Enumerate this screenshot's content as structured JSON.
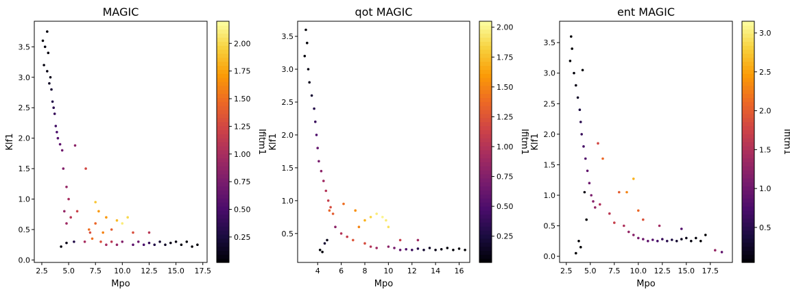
{
  "chart_data": [
    {
      "type": "scatter",
      "title": "MAGIC",
      "xlabel": "Mpo",
      "ylabel": "Klf1",
      "colorbar_label": "Ifitm1",
      "colormap": "inferno",
      "xlim": [
        1.8,
        17.9
      ],
      "ylim": [
        -0.04,
        3.92
      ],
      "clim": [
        0.02,
        2.2
      ],
      "xticks": [
        2.5,
        5.0,
        7.5,
        10.0,
        12.5,
        15.0,
        17.5
      ],
      "xtick_labels": [
        "2.5",
        "5.0",
        "7.5",
        "10.0",
        "12.5",
        "15.0",
        "17.5"
      ],
      "yticks": [
        0.0,
        0.5,
        1.0,
        1.5,
        2.0,
        2.5,
        3.0,
        3.5
      ],
      "ytick_labels": [
        "0.0",
        "0.5",
        "1.0",
        "1.5",
        "2.0",
        "2.5",
        "3.0",
        "3.5"
      ],
      "cticks": [
        0.25,
        0.5,
        0.75,
        1.0,
        1.25,
        1.5,
        1.75,
        2.0
      ],
      "ctick_labels": [
        "0.25",
        "0.50",
        "0.75",
        "1.00",
        "1.25",
        "1.50",
        "1.75",
        "2.00"
      ],
      "series": [
        {
          "columns": [
            "Mpo",
            "Klf1",
            "Ifitm1"
          ],
          "points": [
            [
              2.6,
              3.6,
              0.05
            ],
            [
              2.8,
              3.5,
              0.05
            ],
            [
              3.0,
              3.75,
              0.05
            ],
            [
              3.1,
              3.4,
              0.05
            ],
            [
              2.7,
              3.2,
              0.05
            ],
            [
              3.0,
              3.1,
              0.08
            ],
            [
              3.3,
              3.0,
              0.1
            ],
            [
              3.2,
              2.9,
              0.15
            ],
            [
              3.4,
              2.8,
              0.2
            ],
            [
              3.5,
              2.6,
              0.3
            ],
            [
              3.6,
              2.5,
              0.35
            ],
            [
              3.7,
              2.4,
              0.4
            ],
            [
              3.8,
              2.2,
              0.45
            ],
            [
              3.9,
              2.1,
              0.5
            ],
            [
              4.0,
              2.0,
              0.55
            ],
            [
              4.2,
              1.9,
              0.6
            ],
            [
              4.4,
              1.8,
              0.7
            ],
            [
              5.6,
              1.88,
              0.85
            ],
            [
              4.5,
              1.5,
              0.8
            ],
            [
              4.8,
              1.2,
              0.9
            ],
            [
              5.0,
              1.0,
              1.0
            ],
            [
              4.6,
              0.8,
              0.9
            ],
            [
              4.8,
              0.6,
              0.95
            ],
            [
              5.2,
              0.7,
              1.1
            ],
            [
              5.8,
              0.8,
              1.2
            ],
            [
              6.6,
              1.5,
              1.25
            ],
            [
              4.3,
              0.22,
              0.05
            ],
            [
              4.8,
              0.28,
              0.1
            ],
            [
              5.5,
              0.3,
              0.3
            ],
            [
              6.5,
              0.3,
              1.0
            ],
            [
              7.0,
              0.45,
              1.3
            ],
            [
              7.5,
              0.6,
              1.45
            ],
            [
              7.8,
              0.8,
              1.7
            ],
            [
              7.5,
              0.95,
              1.9
            ],
            [
              8.5,
              0.7,
              1.7
            ],
            [
              9.0,
              0.5,
              1.4
            ],
            [
              9.5,
              0.65,
              1.85
            ],
            [
              10.0,
              0.6,
              2.1
            ],
            [
              10.5,
              0.7,
              2.0
            ],
            [
              7.2,
              0.35,
              1.5
            ],
            [
              8.0,
              0.3,
              1.3
            ],
            [
              8.5,
              0.25,
              1.0
            ],
            [
              9.0,
              0.3,
              1.1
            ],
            [
              9.5,
              0.25,
              0.9
            ],
            [
              10.0,
              0.3,
              0.8
            ],
            [
              11.0,
              0.25,
              0.6
            ],
            [
              11.5,
              0.3,
              0.7
            ],
            [
              12.0,
              0.25,
              0.5
            ],
            [
              12.5,
              0.28,
              0.4
            ],
            [
              13.0,
              0.25,
              0.3
            ],
            [
              13.5,
              0.3,
              0.2
            ],
            [
              14.0,
              0.25,
              0.15
            ],
            [
              14.5,
              0.28,
              0.1
            ],
            [
              15.0,
              0.3,
              0.08
            ],
            [
              15.5,
              0.25,
              0.05
            ],
            [
              16.0,
              0.3,
              0.04
            ],
            [
              16.5,
              0.22,
              0.03
            ],
            [
              17.0,
              0.25,
              0.03
            ],
            [
              12.5,
              0.45,
              1.1
            ],
            [
              11.0,
              0.45,
              1.3
            ],
            [
              8.2,
              0.45,
              1.6
            ],
            [
              6.9,
              0.5,
              1.5
            ]
          ]
        }
      ]
    },
    {
      "type": "scatter",
      "title": "qot MAGIC",
      "xlabel": "Mpo",
      "ylabel": "Klf1",
      "colorbar_label": "Ifitm1",
      "colormap": "inferno",
      "xlim": [
        2.3,
        16.9
      ],
      "ylim": [
        0.06,
        3.73
      ],
      "clim": [
        0.03,
        2.05
      ],
      "xticks": [
        4,
        6,
        8,
        10,
        12,
        14,
        16
      ],
      "xtick_labels": [
        "4",
        "6",
        "8",
        "10",
        "12",
        "14",
        "16"
      ],
      "yticks": [
        0.5,
        1.0,
        1.5,
        2.0,
        2.5,
        3.0,
        3.5
      ],
      "ytick_labels": [
        "0.5",
        "1.0",
        "1.5",
        "2.0",
        "2.5",
        "3.0",
        "3.5"
      ],
      "cticks": [
        0.25,
        0.5,
        0.75,
        1.0,
        1.25,
        1.5,
        1.75,
        2.0
      ],
      "ctick_labels": [
        "0.25",
        "0.50",
        "0.75",
        "1.00",
        "1.25",
        "1.50",
        "1.75",
        "2.00"
      ],
      "series": [
        {
          "columns": [
            "Mpo",
            "Klf1",
            "Ifitm1"
          ],
          "points": [
            [
              3.0,
              3.6,
              0.05
            ],
            [
              3.1,
              3.4,
              0.05
            ],
            [
              2.9,
              3.2,
              0.05
            ],
            [
              3.2,
              3.0,
              0.08
            ],
            [
              3.3,
              2.8,
              0.12
            ],
            [
              3.5,
              2.6,
              0.2
            ],
            [
              3.7,
              2.4,
              0.3
            ],
            [
              3.8,
              2.2,
              0.4
            ],
            [
              3.9,
              2.0,
              0.5
            ],
            [
              4.0,
              1.8,
              0.6
            ],
            [
              4.1,
              1.6,
              0.7
            ],
            [
              4.3,
              1.45,
              0.8
            ],
            [
              4.5,
              1.3,
              0.9
            ],
            [
              4.7,
              1.15,
              1.0
            ],
            [
              4.9,
              1.0,
              1.1
            ],
            [
              5.1,
              0.9,
              1.2
            ],
            [
              5.3,
              0.8,
              1.3
            ],
            [
              5.0,
              0.85,
              1.35
            ],
            [
              4.8,
              0.4,
              0.1
            ],
            [
              4.6,
              0.35,
              0.2
            ],
            [
              5.5,
              0.6,
              0.8
            ],
            [
              6.0,
              0.5,
              1.0
            ],
            [
              6.5,
              0.45,
              1.1
            ],
            [
              7.0,
              0.4,
              1.25
            ],
            [
              7.5,
              0.6,
              1.5
            ],
            [
              8.0,
              0.7,
              1.7
            ],
            [
              8.5,
              0.75,
              1.85
            ],
            [
              9.0,
              0.8,
              1.95
            ],
            [
              9.5,
              0.75,
              2.0
            ],
            [
              10.0,
              0.6,
              1.9
            ],
            [
              9.8,
              0.7,
              1.95
            ],
            [
              8.0,
              0.35,
              1.2
            ],
            [
              8.5,
              0.3,
              1.0
            ],
            [
              9.0,
              0.28,
              0.9
            ],
            [
              10.0,
              0.3,
              0.8
            ],
            [
              10.5,
              0.28,
              0.7
            ],
            [
              11.0,
              0.25,
              0.6
            ],
            [
              11.5,
              0.26,
              0.5
            ],
            [
              12.0,
              0.25,
              0.4
            ],
            [
              12.5,
              0.27,
              0.3
            ],
            [
              13.0,
              0.25,
              0.2
            ],
            [
              13.5,
              0.28,
              0.15
            ],
            [
              14.0,
              0.25,
              0.1
            ],
            [
              14.5,
              0.26,
              0.08
            ],
            [
              15.0,
              0.28,
              0.05
            ],
            [
              15.5,
              0.25,
              0.05
            ],
            [
              16.0,
              0.27,
              0.04
            ],
            [
              16.5,
              0.25,
              0.03
            ],
            [
              4.4,
              0.22,
              0.05
            ],
            [
              4.2,
              0.25,
              0.04
            ],
            [
              12.5,
              0.4,
              0.9
            ],
            [
              11.0,
              0.4,
              1.1
            ],
            [
              7.2,
              0.85,
              1.55
            ],
            [
              6.2,
              0.95,
              1.4
            ]
          ]
        }
      ]
    },
    {
      "type": "scatter",
      "title": "ent MAGIC",
      "xlabel": "Mpo",
      "ylabel": "Klf1",
      "colorbar_label": "Ifitm1",
      "colormap": "inferno",
      "xlim": [
        1.8,
        19.8
      ],
      "ylim": [
        -0.1,
        3.85
      ],
      "clim": [
        0.05,
        3.15
      ],
      "xticks": [
        2.5,
        5.0,
        7.5,
        10.0,
        12.5,
        15.0,
        17.5
      ],
      "xtick_labels": [
        "2.5",
        "5.0",
        "7.5",
        "10.0",
        "12.5",
        "15.0",
        "17.5"
      ],
      "yticks": [
        0.0,
        0.5,
        1.0,
        1.5,
        2.0,
        2.5,
        3.0,
        3.5
      ],
      "ytick_labels": [
        "0.0",
        "0.5",
        "1.0",
        "1.5",
        "2.0",
        "2.5",
        "3.0",
        "3.5"
      ],
      "cticks": [
        0.5,
        1.0,
        1.5,
        2.0,
        2.5,
        3.0
      ],
      "ctick_labels": [
        "0.5",
        "1.0",
        "1.5",
        "2.0",
        "2.5",
        "3.0"
      ],
      "series": [
        {
          "columns": [
            "Mpo",
            "Klf1",
            "Ifitm1"
          ],
          "points": [
            [
              3.0,
              3.6,
              0.05
            ],
            [
              3.1,
              3.4,
              0.05
            ],
            [
              2.9,
              3.2,
              0.05
            ],
            [
              3.3,
              3.0,
              0.08
            ],
            [
              3.5,
              2.8,
              0.15
            ],
            [
              3.7,
              2.6,
              0.25
            ],
            [
              3.9,
              2.4,
              0.4
            ],
            [
              4.0,
              2.2,
              0.5
            ],
            [
              4.1,
              2.0,
              0.6
            ],
            [
              4.3,
              1.8,
              0.7
            ],
            [
              4.5,
              1.6,
              0.8
            ],
            [
              4.7,
              1.4,
              0.9
            ],
            [
              4.9,
              1.2,
              1.0
            ],
            [
              5.1,
              1.0,
              1.1
            ],
            [
              5.3,
              0.9,
              1.2
            ],
            [
              4.2,
              3.05,
              0.05
            ],
            [
              4.4,
              1.05,
              0.1
            ],
            [
              4.6,
              0.6,
              0.05
            ],
            [
              3.8,
              0.25,
              0.04
            ],
            [
              4.0,
              0.15,
              0.03
            ],
            [
              3.5,
              0.05,
              0.05
            ],
            [
              5.5,
              0.8,
              1.3
            ],
            [
              6.0,
              0.85,
              1.5
            ],
            [
              6.3,
              1.6,
              2.1
            ],
            [
              5.8,
              1.85,
              1.8
            ],
            [
              7.0,
              0.7,
              1.6
            ],
            [
              7.5,
              0.55,
              1.7
            ],
            [
              8.0,
              1.05,
              2.0
            ],
            [
              8.8,
              1.05,
              2.3
            ],
            [
              9.5,
              1.27,
              2.6
            ],
            [
              10.0,
              0.75,
              2.1
            ],
            [
              10.5,
              0.6,
              1.9
            ],
            [
              8.5,
              0.5,
              1.5
            ],
            [
              9.0,
              0.4,
              1.3
            ],
            [
              9.5,
              0.35,
              1.2
            ],
            [
              10.0,
              0.3,
              1.1
            ],
            [
              10.5,
              0.28,
              1.0
            ],
            [
              11.0,
              0.25,
              0.9
            ],
            [
              11.5,
              0.27,
              0.8
            ],
            [
              12.0,
              0.25,
              0.7
            ],
            [
              12.5,
              0.28,
              0.6
            ],
            [
              13.0,
              0.25,
              0.5
            ],
            [
              13.5,
              0.27,
              0.4
            ],
            [
              14.0,
              0.25,
              0.3
            ],
            [
              14.5,
              0.28,
              0.2
            ],
            [
              15.0,
              0.3,
              0.15
            ],
            [
              15.5,
              0.25,
              0.1
            ],
            [
              16.0,
              0.3,
              0.08
            ],
            [
              16.5,
              0.25,
              0.06
            ],
            [
              17.0,
              0.35,
              0.05
            ],
            [
              18.0,
              0.1,
              1.3
            ],
            [
              18.7,
              0.07,
              0.9
            ],
            [
              12.2,
              0.5,
              1.4
            ],
            [
              14.5,
              0.45,
              0.8
            ]
          ]
        }
      ]
    }
  ]
}
